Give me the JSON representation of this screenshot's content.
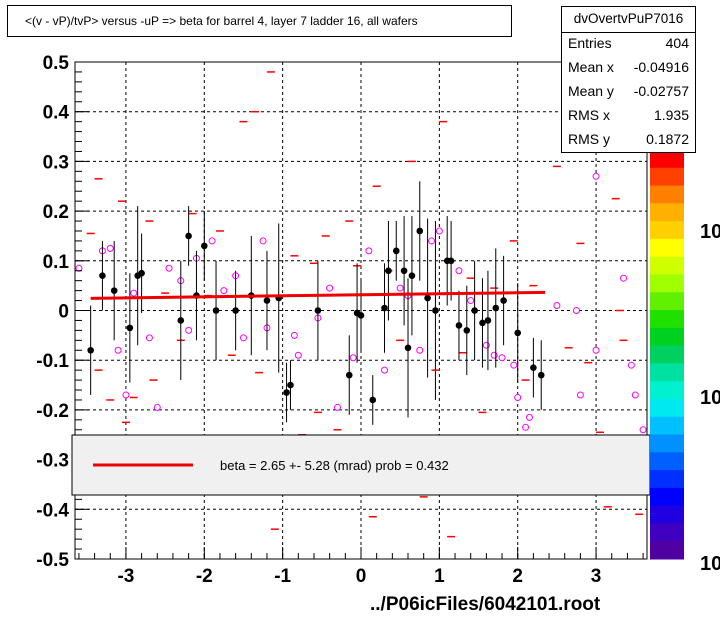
{
  "title": "<(v - vP)/tvP> versus  -uP => beta for barrel 4, layer 7 ladder 16, all wafers",
  "stats": {
    "name": "dvOvertvPuP7016",
    "rows": [
      {
        "label": "Entries",
        "value": "404"
      },
      {
        "label": "Mean x",
        "value": "-0.04916"
      },
      {
        "label": "Mean y",
        "value": "-0.02757"
      },
      {
        "label": "RMS x",
        "value": "1.935"
      },
      {
        "label": "RMS y",
        "value": "0.1872"
      }
    ]
  },
  "legend": {
    "text": "beta =    2.65 +-  5.28 (mrad) prob = 0.432"
  },
  "file_label": "../P06icFiles/6042101.root",
  "colors": {
    "fit_line": "#ee0000",
    "points": "#000000",
    "open_markers": "#ff00ff",
    "hist": "#ff0000",
    "legend_bg": "#f0f0f0"
  },
  "chart_data": {
    "type": "scatter",
    "xlim": [
      -3.65,
      3.65
    ],
    "ylim": [
      -0.5,
      0.5
    ],
    "x_ticks": [
      "-3",
      "-2",
      "-1",
      "0",
      "1",
      "2",
      "3"
    ],
    "y_ticks": [
      "-0.5",
      "-0.4",
      "-0.3",
      "-0.2",
      "-0.1",
      "0",
      "0.1",
      "0.2",
      "0.3",
      "0.4",
      "0.5"
    ],
    "z_tick_labels": [
      "10",
      "10",
      "10"
    ],
    "grid": true,
    "fit": {
      "x": [
        -3.45,
        2.35
      ],
      "y": [
        0.0245,
        0.0365
      ]
    },
    "profile": [
      {
        "x": -3.45,
        "y": -0.08,
        "e": 0.09
      },
      {
        "x": -3.3,
        "y": 0.07,
        "e": 0.07
      },
      {
        "x": -3.15,
        "y": 0.04,
        "e": 0.1
      },
      {
        "x": -2.95,
        "y": -0.035,
        "e": 0.11
      },
      {
        "x": -2.85,
        "y": 0.07,
        "e": 0.14
      },
      {
        "x": -2.8,
        "y": 0.075,
        "e": 0.08
      },
      {
        "x": -2.3,
        "y": -0.02,
        "e": 0.12
      },
      {
        "x": -2.2,
        "y": 0.15,
        "e": 0.06
      },
      {
        "x": -2.1,
        "y": 0.03,
        "e": 0.09
      },
      {
        "x": -2.0,
        "y": 0.13,
        "e": 0.07
      },
      {
        "x": -1.85,
        "y": 0.0,
        "e": 0.1
      },
      {
        "x": -1.6,
        "y": 0.0,
        "e": 0.08
      },
      {
        "x": -1.4,
        "y": 0.03,
        "e": 0.12
      },
      {
        "x": -1.2,
        "y": 0.02,
        "e": 0.1
      },
      {
        "x": -1.05,
        "y": 0.025,
        "e": 0.15
      },
      {
        "x": -0.95,
        "y": -0.165,
        "e": 0.06
      },
      {
        "x": -0.9,
        "y": -0.15,
        "e": 0.05
      },
      {
        "x": -0.55,
        "y": 0.0,
        "e": 0.1
      },
      {
        "x": -0.15,
        "y": -0.13,
        "e": 0.08
      },
      {
        "x": -0.05,
        "y": -0.005,
        "e": 0.1
      },
      {
        "x": 0.0,
        "y": -0.01,
        "e": 0.07
      },
      {
        "x": 0.15,
        "y": -0.18,
        "e": 0.05
      },
      {
        "x": 0.3,
        "y": 0.005,
        "e": 0.09
      },
      {
        "x": 0.35,
        "y": 0.08,
        "e": 0.1
      },
      {
        "x": 0.45,
        "y": 0.12,
        "e": 0.06
      },
      {
        "x": 0.55,
        "y": 0.08,
        "e": 0.11
      },
      {
        "x": 0.6,
        "y": -0.075,
        "e": 0.14
      },
      {
        "x": 0.65,
        "y": 0.07,
        "e": 0.12
      },
      {
        "x": 0.75,
        "y": 0.16,
        "e": 0.1
      },
      {
        "x": 0.85,
        "y": 0.025,
        "e": 0.16
      },
      {
        "x": 0.95,
        "y": 0.0,
        "e": 0.18
      },
      {
        "x": 1.1,
        "y": 0.1,
        "e": 0.09
      },
      {
        "x": 1.15,
        "y": 0.1,
        "e": 0.08
      },
      {
        "x": 1.25,
        "y": -0.03,
        "e": 0.07
      },
      {
        "x": 1.35,
        "y": -0.04,
        "e": 0.09
      },
      {
        "x": 1.45,
        "y": 0.0,
        "e": 0.1
      },
      {
        "x": 1.55,
        "y": -0.025,
        "e": 0.09
      },
      {
        "x": 1.62,
        "y": -0.02,
        "e": 0.1
      },
      {
        "x": 1.72,
        "y": 0.005,
        "e": 0.12
      },
      {
        "x": 1.82,
        "y": 0.02,
        "e": 0.09
      },
      {
        "x": 2.0,
        "y": -0.045,
        "e": 0.1
      },
      {
        "x": 2.2,
        "y": -0.115,
        "e": 0.06
      },
      {
        "x": 2.3,
        "y": -0.13,
        "e": 0.07
      }
    ],
    "open_points": [
      {
        "x": -3.6,
        "y": 0.085
      },
      {
        "x": -3.3,
        "y": 0.12
      },
      {
        "x": -3.2,
        "y": 0.125
      },
      {
        "x": -3.1,
        "y": -0.08
      },
      {
        "x": -3.0,
        "y": -0.17
      },
      {
        "x": -2.9,
        "y": 0.035
      },
      {
        "x": -2.7,
        "y": -0.055
      },
      {
        "x": -2.6,
        "y": -0.195
      },
      {
        "x": -2.45,
        "y": 0.085
      },
      {
        "x": -2.3,
        "y": 0.06
      },
      {
        "x": -2.2,
        "y": -0.04
      },
      {
        "x": -2.1,
        "y": 0.105
      },
      {
        "x": -1.9,
        "y": 0.14
      },
      {
        "x": -1.75,
        "y": 0.04
      },
      {
        "x": -1.6,
        "y": 0.07
      },
      {
        "x": -1.5,
        "y": -0.055
      },
      {
        "x": -1.25,
        "y": 0.14
      },
      {
        "x": -1.2,
        "y": -0.035
      },
      {
        "x": -0.85,
        "y": -0.05
      },
      {
        "x": -0.8,
        "y": -0.09
      },
      {
        "x": -0.55,
        "y": -0.015
      },
      {
        "x": -0.4,
        "y": 0.045
      },
      {
        "x": -0.3,
        "y": -0.195
      },
      {
        "x": -0.1,
        "y": -0.095
      },
      {
        "x": 0.1,
        "y": 0.12
      },
      {
        "x": 0.3,
        "y": -0.12
      },
      {
        "x": 0.5,
        "y": 0.045
      },
      {
        "x": 0.6,
        "y": 0.03
      },
      {
        "x": 0.75,
        "y": -0.08
      },
      {
        "x": 0.9,
        "y": 0.14
      },
      {
        "x": 1.0,
        "y": 0.16
      },
      {
        "x": 1.25,
        "y": 0.08
      },
      {
        "x": 1.4,
        "y": 0.02
      },
      {
        "x": 1.6,
        "y": -0.07
      },
      {
        "x": 1.7,
        "y": -0.09
      },
      {
        "x": 1.8,
        "y": -0.095
      },
      {
        "x": 1.95,
        "y": -0.11
      },
      {
        "x": 2.0,
        "y": -0.175
      },
      {
        "x": 2.15,
        "y": -0.215
      },
      {
        "x": 2.5,
        "y": 0.01
      },
      {
        "x": 2.75,
        "y": 0.0
      },
      {
        "x": 2.8,
        "y": -0.17
      },
      {
        "x": 3.0,
        "y": -0.08
      },
      {
        "x": 3.35,
        "y": 0.065
      },
      {
        "x": 3.45,
        "y": -0.11
      },
      {
        "x": 3.5,
        "y": -0.17
      },
      {
        "x": 3.0,
        "y": 0.27
      },
      {
        "x": 3.6,
        "y": -0.24
      },
      {
        "x": 2.1,
        "y": -0.235
      }
    ],
    "hist_bins": [
      {
        "x": -3.45,
        "y": 0.155
      },
      {
        "x": -3.35,
        "y": 0.265
      },
      {
        "x": -3.2,
        "y": -0.18
      },
      {
        "x": -3.05,
        "y": 0.22
      },
      {
        "x": -3.0,
        "y": -0.225
      },
      {
        "x": -2.9,
        "y": -0.175
      },
      {
        "x": -2.7,
        "y": 0.18
      },
      {
        "x": -2.65,
        "y": -0.14
      },
      {
        "x": -2.5,
        "y": 0.035
      },
      {
        "x": -2.3,
        "y": -0.06
      },
      {
        "x": -2.15,
        "y": 0.195
      },
      {
        "x": -2.0,
        "y": -0.36
      },
      {
        "x": -1.95,
        "y": 0.03
      },
      {
        "x": -1.8,
        "y": 0.16
      },
      {
        "x": -1.65,
        "y": -0.09
      },
      {
        "x": -1.5,
        "y": 0.38
      },
      {
        "x": -1.35,
        "y": 0.4
      },
      {
        "x": -1.3,
        "y": -0.125
      },
      {
        "x": -1.15,
        "y": 0.48
      },
      {
        "x": -1.1,
        "y": -0.44
      },
      {
        "x": -0.85,
        "y": 0.11
      },
      {
        "x": -0.75,
        "y": -0.25
      },
      {
        "x": -0.6,
        "y": 0.095
      },
      {
        "x": -0.45,
        "y": 0.15
      },
      {
        "x": -0.3,
        "y": -0.24
      },
      {
        "x": -0.15,
        "y": 0.18
      },
      {
        "x": -0.05,
        "y": 0.09
      },
      {
        "x": 0.15,
        "y": -0.415
      },
      {
        "x": 0.2,
        "y": 0.25
      },
      {
        "x": 0.35,
        "y": 0.08
      },
      {
        "x": 0.5,
        "y": -0.06
      },
      {
        "x": 0.55,
        "y": -0.31
      },
      {
        "x": 0.65,
        "y": 0.3
      },
      {
        "x": 0.8,
        "y": -0.375
      },
      {
        "x": 0.95,
        "y": -0.12
      },
      {
        "x": 1.05,
        "y": 0.38
      },
      {
        "x": 1.15,
        "y": -0.455
      },
      {
        "x": 1.3,
        "y": -0.085
      },
      {
        "x": 1.4,
        "y": 0.065
      },
      {
        "x": 1.55,
        "y": -0.205
      },
      {
        "x": 1.7,
        "y": 0.045
      },
      {
        "x": 1.85,
        "y": -0.28
      },
      {
        "x": 1.95,
        "y": 0.14
      },
      {
        "x": 2.1,
        "y": -0.14
      },
      {
        "x": 2.2,
        "y": 0.05
      },
      {
        "x": 2.35,
        "y": -0.33
      },
      {
        "x": 2.5,
        "y": 0.29
      },
      {
        "x": 2.65,
        "y": -0.075
      },
      {
        "x": 2.8,
        "y": 0.135
      },
      {
        "x": 2.9,
        "y": -0.105
      },
      {
        "x": 3.05,
        "y": -0.245
      },
      {
        "x": 3.15,
        "y": -0.395
      },
      {
        "x": 3.25,
        "y": 0.225
      },
      {
        "x": 3.35,
        "y": -0.06
      },
      {
        "x": 3.45,
        "y": 0.35
      },
      {
        "x": 3.55,
        "y": -0.41
      },
      {
        "x": 3.3,
        "y": 0.0
      },
      {
        "x": -0.55,
        "y": -0.205
      },
      {
        "x": -3.35,
        "y": -0.12
      }
    ]
  }
}
